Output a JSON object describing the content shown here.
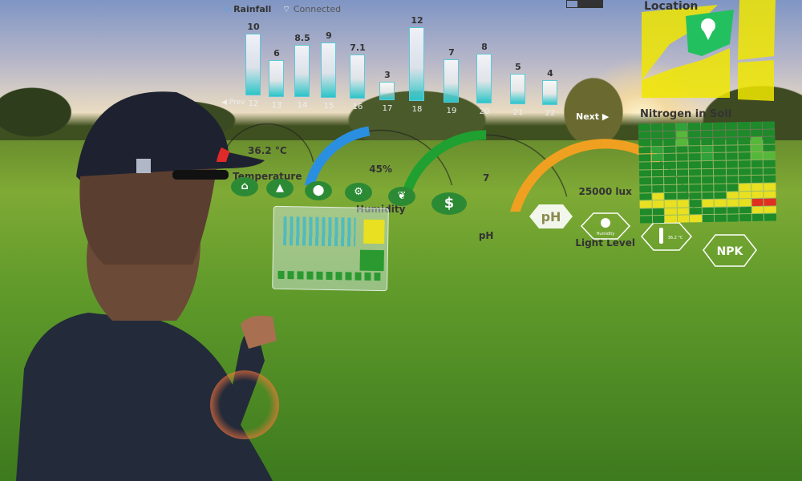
{
  "header": {
    "rainfall_label": "Rainfall",
    "connection_status": "Connected",
    "battery_icon": "battery-icon"
  },
  "rainfall_chart": {
    "type": "bar",
    "categories": [
      "12",
      "13",
      "14",
      "15",
      "16",
      "17",
      "18",
      "19",
      "20",
      "21",
      "22"
    ],
    "values": [
      10,
      6,
      8.5,
      9,
      7.1,
      3,
      12,
      7,
      8,
      5,
      4
    ],
    "value_labels": [
      "10",
      "6",
      "8.5",
      "9",
      "7.1",
      "3",
      "12",
      "7",
      "8",
      "5",
      "4"
    ],
    "prev_label": "◀ Prev",
    "next_label": "Next ▶"
  },
  "gauges": [
    {
      "value": "36.2 °C",
      "label": "Temperature",
      "fill": 0.15,
      "color": "#e02a2a"
    },
    {
      "value": "45%",
      "label": "Humidity",
      "fill": 0.45,
      "color": "#2a8fe0"
    },
    {
      "value": "7",
      "label": "pH",
      "fill": 0.5,
      "color": "#1fa030"
    },
    {
      "value": "25000 lux",
      "label": "Light Level",
      "fill": 0.7,
      "color": "#f0a020"
    }
  ],
  "app_icons": [
    "home-icon",
    "image-icon",
    "location-pin-icon",
    "gears-icon",
    "leaf-icon",
    "dollar-icon"
  ],
  "dollar_glyph": "$",
  "hex_badges": [
    {
      "text": "pH"
    },
    {
      "text": "Humidity"
    },
    {
      "text": "36.2 °C"
    },
    {
      "text": "NPK"
    }
  ],
  "location": {
    "title": "Location"
  },
  "nitrogen": {
    "title": "Nitrogen in Soil",
    "colors": {
      "G": "#1e8a2a",
      "g": "#2fa23a",
      "l": "#55b83a",
      "Y": "#e8e020",
      "R": "#e03020"
    },
    "rows": [
      "GGGgGGGGGGG",
      "GGGlGGGGGGG",
      "GGGlGGGGGlG",
      "GgGGGgGGGlG",
      "GgGGGgGGGll",
      "GGGGGGGGGGG",
      "GGGGGGGGGGG",
      "GGGGGGGGGGG",
      "GGGGGGGGYYY",
      "GYGGGGGYYYY",
      "YYYYGYYYYRR",
      "GGYYGGGGGYY",
      "GGYYYGGGGGG"
    ]
  }
}
